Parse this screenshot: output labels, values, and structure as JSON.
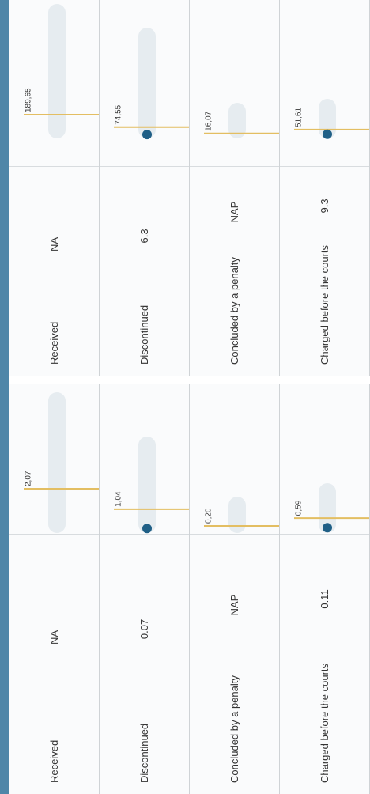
{
  "panels": [
    {
      "rows": [
        {
          "label": "Received",
          "value": "NA",
          "reference": 2.07,
          "reference_label": "2,07"
        },
        {
          "label": "Discontinued",
          "value": 0.07,
          "reference": 1.04,
          "reference_label": "1,04"
        },
        {
          "label": "Concluded by a penalty",
          "value": "NAP",
          "reference": 0.2,
          "reference_label": "0,20"
        },
        {
          "label": "Charged before the courts",
          "value": 0.11,
          "reference": 0.59,
          "reference_label": "0,59"
        }
      ]
    },
    {
      "rows": [
        {
          "label": "Received",
          "value": "NA",
          "reference": 189.65,
          "reference_label": "189,65"
        },
        {
          "label": "Discontinued",
          "value": 6.3,
          "reference": 74.55,
          "reference_label": "74,55"
        },
        {
          "label": "Concluded by a penalty",
          "value": "NAP",
          "reference": 16.07,
          "reference_label": "16,07"
        },
        {
          "label": "Charged before the courts",
          "value": 9.3,
          "reference": 51.61,
          "reference_label": "51,61"
        }
      ]
    }
  ]
}
